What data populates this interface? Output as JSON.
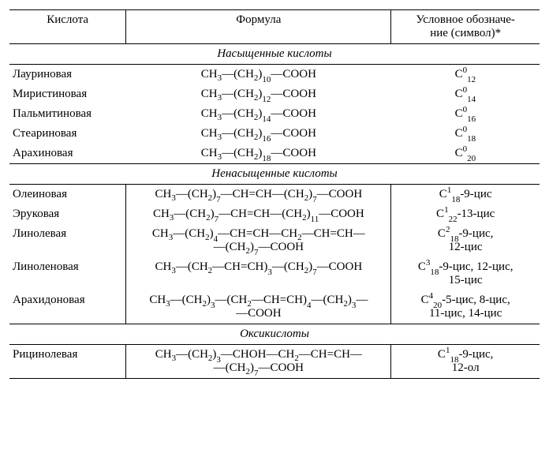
{
  "colors": {
    "ink": "#000000",
    "paper": "#ffffff"
  },
  "typography": {
    "family": "Times New Roman",
    "base_size_pt": 11
  },
  "layout": {
    "column_widths_pct": [
      22,
      50,
      28
    ]
  },
  "headers": {
    "acid": "Кислота",
    "formula": "Формула",
    "symbol_l1": "Условное обозначе-",
    "symbol_l2": "ние (символ)*"
  },
  "sections": {
    "saturated": "Насыщенные кислоты",
    "unsaturated": "Ненасыщенные кислоты",
    "oxy": "Оксикислоты"
  },
  "sat": [
    {
      "name": "Лауриновая",
      "mid": "10",
      "sym_sub": "12"
    },
    {
      "name": "Миристиновая",
      "mid": "12",
      "sym_sub": "14"
    },
    {
      "name": "Пальмитиновая",
      "mid": "14",
      "sym_sub": "16"
    },
    {
      "name": "Стеариновая",
      "mid": "16",
      "sym_sub": "18"
    },
    {
      "name": "Арахиновая",
      "mid": "18",
      "sym_sub": "20"
    }
  ],
  "unsat": {
    "oleic": {
      "name": "Олеиновая",
      "tail_sub": "7",
      "sym_sup": "1",
      "sym_sub": "18",
      "sym_tail": "-9-цис"
    },
    "erucic": {
      "name": "Эруковая",
      "tail_sub": "11",
      "sym_sup": "1",
      "sym_sub": "22",
      "sym_tail": "-13-цис"
    },
    "linoleic": {
      "name": "Линолевая",
      "sym_sup": "2",
      "sym_sub": "18",
      "sym_tail_l1": "-9-цис,",
      "sym_tail_l2": "12-цис"
    },
    "linolenic": {
      "name": "Линоленовая",
      "sym_sup": "3",
      "sym_sub": "18",
      "sym_tail_l1": "-9-цис, 12-цис,",
      "sym_tail_l2": "15-цис"
    },
    "arachidonic": {
      "name": "Арахидоновая",
      "sym_sup": "4",
      "sym_sub": "20",
      "sym_tail_l1": "-5-цис, 8-цис,",
      "sym_tail_l2": "11-цис, 14-цис"
    }
  },
  "oxy": {
    "ricin": {
      "name": "Рицинолевая",
      "sym_sup": "1",
      "sym_sub": "18",
      "sym_tail_l1": "-9-цис,",
      "sym_tail_l2": "12-ол"
    }
  },
  "frag": {
    "ch3": "CH",
    "three": "3",
    "lparen_ch2": "—(CH",
    "two": "2",
    "rparen": ")",
    "cooh": "—COOH",
    "ch_eq_ch": "—CH=CH",
    "ch2_plain": "—CH",
    "dash": "—",
    "choh": "—CHOH",
    "seven": "7",
    "four": "4",
    "threeN": "3",
    "C": "C",
    "zero": "0"
  }
}
